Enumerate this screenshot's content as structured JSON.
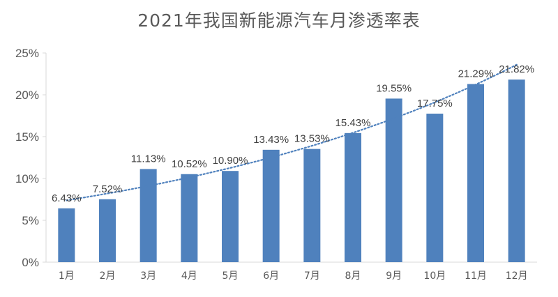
{
  "chart_data": {
    "type": "bar",
    "title": "2021年我国新能源汽车月渗透率表",
    "xlabel": "",
    "ylabel": "",
    "categories": [
      "1月",
      "2月",
      "3月",
      "4月",
      "5月",
      "6月",
      "7月",
      "8月",
      "9月",
      "10月",
      "11月",
      "12月"
    ],
    "values": [
      6.43,
      7.52,
      11.13,
      10.52,
      10.9,
      13.43,
      13.53,
      15.43,
      19.55,
      17.75,
      21.29,
      21.82
    ],
    "data_labels": [
      "6.43%",
      "7.52%",
      "11.13%",
      "10.52%",
      "10.90%",
      "13.43%",
      "13.53%",
      "15.43%",
      "19.55%",
      "17.75%",
      "21.29%",
      "21.82%"
    ],
    "ylim": [
      0,
      25
    ],
    "yticks": [
      0,
      5,
      10,
      15,
      20,
      25
    ],
    "ytick_labels": [
      "0%",
      "5%",
      "10%",
      "15%",
      "20%",
      "25%"
    ],
    "trendline": "exponential, dotted",
    "grid": false,
    "legend": "none",
    "colors": {
      "bar": "#4f81bd",
      "trendline": "#4f81bd",
      "text": "#595959",
      "axis": "#d9d9d9"
    }
  }
}
